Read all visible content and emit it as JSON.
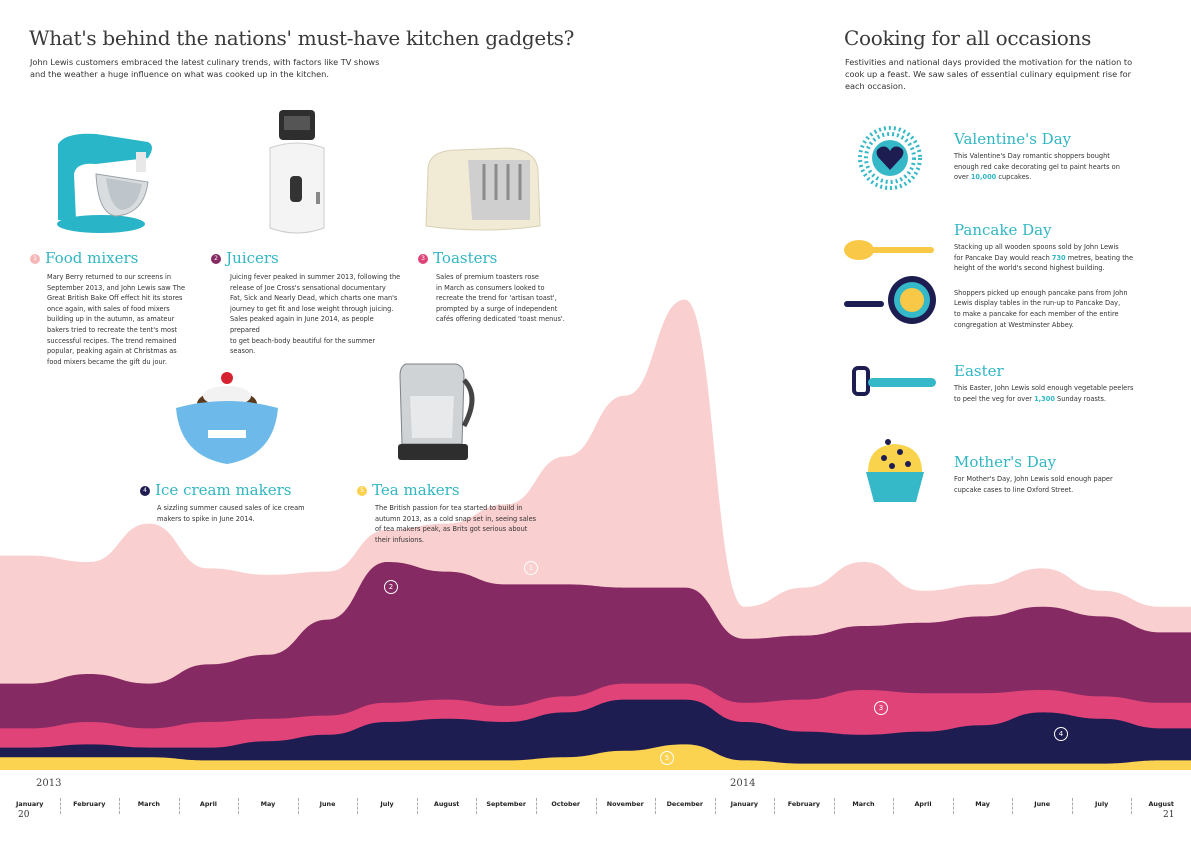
{
  "left": {
    "title": "What's behind the nations' must-have kitchen gadgets?",
    "intro_line1": "John Lewis customers embraced the latest culinary trends, with factors like TV shows",
    "intro_line2": "and the weather a huge influence on what was cooked up in the kitchen."
  },
  "categories": [
    {
      "num": "1",
      "title": "Food mixers",
      "color": "#f6b7b9",
      "lines": [
        "Mary Berry returned to our screens in",
        "September 2013, and John Lewis saw The",
        "Great British Bake Off effect hit its stores",
        "once again, with sales of food mixers",
        "building up in the autumn, as amateur",
        "bakers tried to recreate the tent's most",
        "successful recipes. The trend remained",
        "popular, peaking again at Christmas as",
        "food mixers became the gift du jour."
      ]
    },
    {
      "num": "2",
      "title": "Juicers",
      "color": "#862a63",
      "lines": [
        "Juicing fever peaked in summer 2013, following the",
        "release of Joe Cross's sensational documentary",
        "Fat, Sick and Nearly Dead, which charts one man's",
        "journey to get fit and lose weight through juicing.",
        "Sales peaked again in June 2014, as people prepared",
        "to get beach-body beautiful for the summer",
        "season."
      ]
    },
    {
      "num": "3",
      "title": "Toasters",
      "color": "#e04377",
      "lines": [
        "Sales of premium toasters rose",
        "in March as consumers looked to",
        "recreate the trend for 'artisan toast',",
        "prompted by a surge of independent",
        "cafés offering dedicated 'toast menus'."
      ]
    },
    {
      "num": "4",
      "title": "Ice cream makers",
      "color": "#1e1d52",
      "lines": [
        "A sizzling summer caused sales of ice cream",
        "makers to spike in June 2014."
      ]
    },
    {
      "num": "5",
      "title": "Tea makers",
      "color": "#fbd04d",
      "lines": [
        "The British passion for tea started to build in",
        "autumn 2013, as a cold snap set in, seeing sales",
        "of tea makers peak, as Brits got serious about",
        "their infusions."
      ]
    }
  ],
  "right": {
    "title": "Cooking for all occasions",
    "intro_lines": [
      "Festivities and national days provided the motivation for the nation to",
      "cook up a feast. We saw sales of essential culinary equipment rise for",
      "each occasion."
    ],
    "occasions": [
      {
        "title": "Valentine's Day",
        "lines": [
          "This Valentine's Day romantic shoppers bought",
          "enough red cake decorating gel to paint hearts on"
        ],
        "pre": "over ",
        "highlight": "10,000",
        "post": " cupcakes."
      },
      {
        "title": "Pancake Day",
        "lines": [
          "Stacking up all wooden spoons sold by John Lewis"
        ],
        "pre": "for Pancake Day would reach ",
        "highlight": "730",
        "post": " metres, beating the",
        "lines_after": [
          "height of the world's second highest building."
        ],
        "extra_lines": [
          "Shoppers picked up enough pancake pans from John",
          "Lewis display tables in the run-up to Pancake Day,",
          "to make a pancake for each member of the entire",
          "congregation at Westminster Abbey."
        ]
      },
      {
        "title": "Easter",
        "lines": [
          "This Easter, John Lewis sold enough vegetable peelers"
        ],
        "pre": "to peel the veg for over ",
        "highlight": "1,300",
        "post": " Sunday roasts."
      },
      {
        "title": "Mother's Day",
        "lines": [
          "For Mother's Day, John Lewis sold enough paper",
          "cupcake cases to line Oxford Street."
        ]
      }
    ]
  },
  "chart_data": {
    "type": "area",
    "x": [
      "January",
      "February",
      "March",
      "April",
      "May",
      "June",
      "July",
      "August",
      "September",
      "October",
      "November",
      "December",
      "January",
      "February",
      "March",
      "April",
      "May",
      "June",
      "July",
      "August"
    ],
    "years": [
      {
        "label": "2013"
      },
      {
        "label": "2014"
      }
    ],
    "stacked": true,
    "series": [
      {
        "name": "Food mixers",
        "color": "#f9cfcf",
        "values": [
          40,
          35,
          50,
          30,
          25,
          15,
          10,
          15,
          25,
          40,
          60,
          90,
          10,
          15,
          20,
          10,
          10,
          12,
          8,
          8
        ]
      },
      {
        "name": "Juicers",
        "color": "#862a63",
        "values": [
          14,
          15,
          14,
          18,
          20,
          30,
          44,
          40,
          38,
          35,
          30,
          30,
          20,
          20,
          20,
          22,
          24,
          26,
          25,
          22
        ]
      },
      {
        "name": "Toasters",
        "color": "#e04377",
        "values": [
          6,
          7,
          6,
          8,
          7,
          6,
          6,
          6,
          5,
          5,
          5,
          5,
          6,
          10,
          14,
          12,
          10,
          7,
          7,
          8
        ]
      },
      {
        "name": "Ice cream makers",
        "color": "#1e1d52",
        "values": [
          3,
          4,
          3,
          4,
          6,
          8,
          12,
          13,
          12,
          14,
          16,
          14,
          12,
          10,
          9,
          10,
          12,
          16,
          14,
          10
        ]
      },
      {
        "name": "Tea makers",
        "color": "#fcd251",
        "values": [
          4,
          4,
          4,
          3,
          3,
          3,
          3,
          3,
          3,
          4,
          6,
          8,
          3,
          2,
          2,
          2,
          2,
          2,
          2,
          3
        ]
      }
    ],
    "markers": [
      "1",
      "2",
      "3",
      "4",
      "5"
    ]
  },
  "pages": {
    "left": "20",
    "right": "21"
  }
}
